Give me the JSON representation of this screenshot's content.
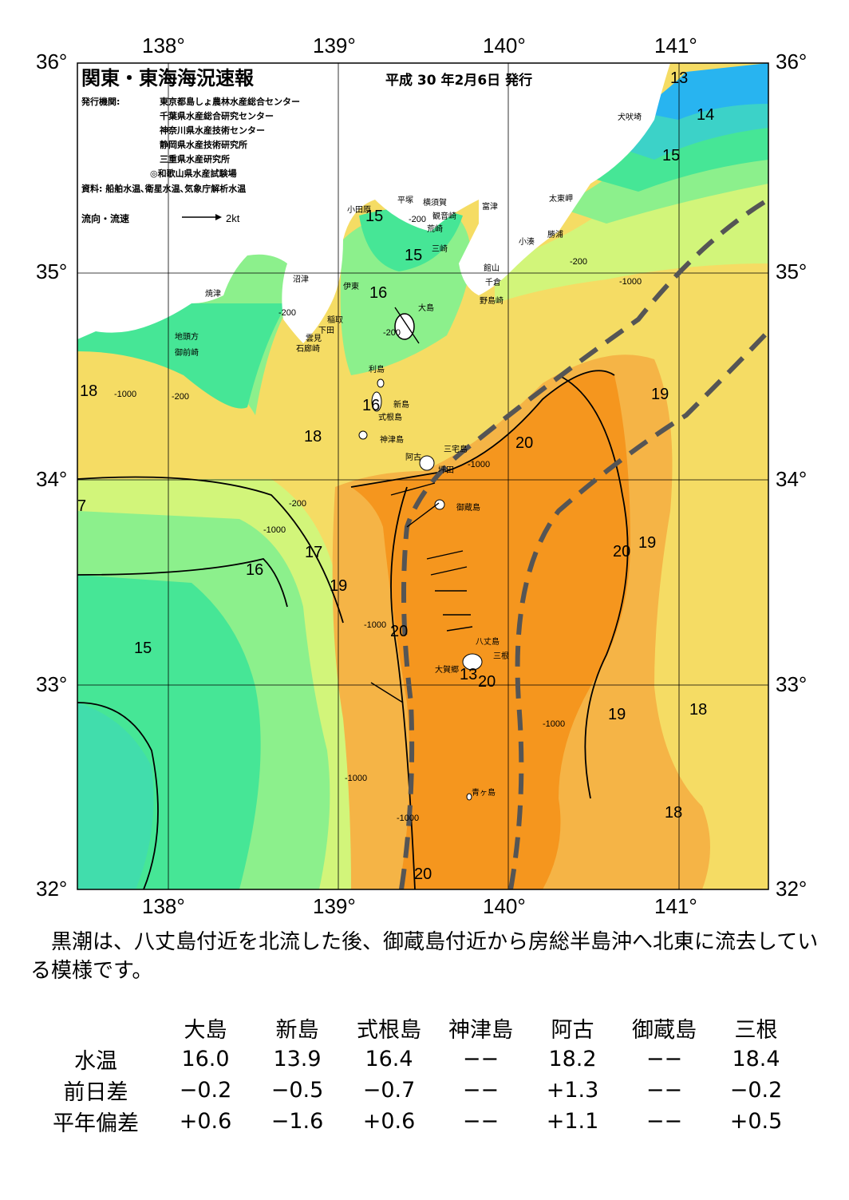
{
  "title": "関東・東海海況速報",
  "issue_date": "平成 30 年2月6日 発行",
  "issuers_label": "発行機関:",
  "issuers": [
    "東京都島しょ農林水産総合センター",
    "千葉県水産総合研究センター",
    "神奈川県水産技術センター",
    "静岡県水産技術研究所",
    "三重県水産研究所",
    "◎和歌山県水産試験場"
  ],
  "source": "資料: 船舶水温､衛星水温､気象庁解析水温",
  "legend_current": "流向・流速",
  "legend_speed": "2kt",
  "lon_labels": [
    "138°",
    "139°",
    "140°",
    "141°"
  ],
  "lat_labels": [
    "36°",
    "35°",
    "34°",
    "33°",
    "32°"
  ],
  "place_names": {
    "inubozaki": "犬吠埼",
    "taitomisaki": "太東岬",
    "katsuura": "勝浦",
    "kominato": "小湊",
    "tomitsu": "富津",
    "yokosuka": "横須賀",
    "kannonzaki": "観音崎",
    "hirastuka": "平塚",
    "odawara": "小田原",
    "aburatsubo": "荒崎",
    "misaki": "三崎",
    "tateyama": "館山",
    "chikura": "千倉",
    "nojimazaki": "野島崎",
    "numazu": "沼津",
    "ito": "伊東",
    "yaizu": "焼津",
    "inatori": "稲取",
    "shimoda": "下田",
    "kumomi": "雲見",
    "irozaki": "石廊崎",
    "jitokata": "地頭方",
    "omaezaki": "御前崎",
    "oshima": "大島",
    "toshima": "利島",
    "niijima": "新島",
    "shikinejima": "式根島",
    "kozushima": "神津島",
    "miyakejima": "三宅島",
    "ako": "阿古",
    "tsubota": "坪田",
    "mikurajima": "御蔵島",
    "hachijojima": "八丈島",
    "mitsune": "三根",
    "okago": "大賀郷",
    "aogashima": "青ヶ島"
  },
  "isotherm_labels": [
    {
      "value": "13"
    },
    {
      "value": "14"
    },
    {
      "value": "15"
    },
    {
      "value": "15"
    },
    {
      "value": "15"
    },
    {
      "value": "16"
    },
    {
      "value": "16"
    },
    {
      "value": "16"
    },
    {
      "value": "15"
    },
    {
      "value": "17"
    },
    {
      "value": "7"
    },
    {
      "value": "18"
    },
    {
      "value": "18"
    },
    {
      "value": "19"
    },
    {
      "value": "19"
    },
    {
      "value": "19"
    },
    {
      "value": "19"
    },
    {
      "value": "20"
    },
    {
      "value": "20"
    },
    {
      "value": "20"
    },
    {
      "value": "20"
    },
    {
      "value": "18"
    },
    {
      "value": "18"
    },
    {
      "value": "13"
    }
  ],
  "depth_labels": [
    "-200",
    "-1000"
  ],
  "temperature_color_scale": {
    "13": "#28b4f0",
    "14": "#3cd2c8",
    "15": "#46e696",
    "16": "#8cf08c",
    "17": "#d2f57a",
    "18": "#f5dc64",
    "19": "#f5b446",
    "20": "#f5961e"
  },
  "kuroshio_path_color": "#555555",
  "summary": "　黒潮は、八丈島付近を北流した後、御蔵島付近から房総半島沖へ北東に流去している模様です。",
  "table": {
    "columns": [
      "大島",
      "新島",
      "式根島",
      "神津島",
      "阿古",
      "御蔵島",
      "三根"
    ],
    "rows": [
      {
        "label": "水温",
        "values": [
          "16.0",
          "13.9",
          "16.4",
          "−−",
          "18.2",
          "−−",
          "18.4"
        ]
      },
      {
        "label": "前日差",
        "values": [
          "−0.2",
          "−0.5",
          "−0.7",
          "−−",
          "+1.3",
          "−−",
          "−0.2"
        ]
      },
      {
        "label": "平年偏差",
        "values": [
          "+0.6",
          "−1.6",
          "+0.6",
          "−−",
          "+1.1",
          "−−",
          "+0.5"
        ]
      }
    ]
  }
}
